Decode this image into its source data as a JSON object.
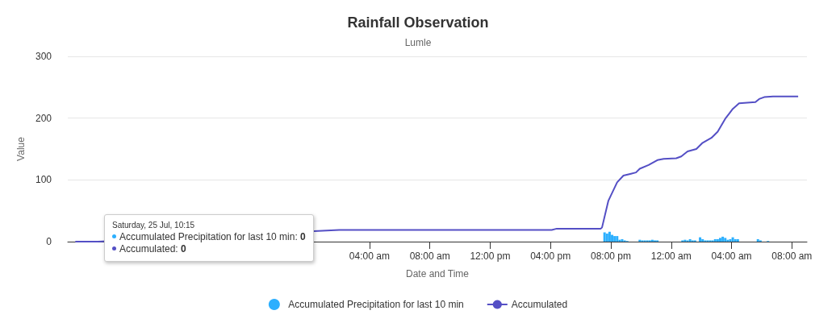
{
  "chart_data": {
    "type": "line",
    "title": "Rainfall Observation",
    "subtitle": "Lumle",
    "xlabel": "Date and Time",
    "ylabel": "Value",
    "xlim": [
      "--07-25T08:00",
      "--07-27T09:00"
    ],
    "ylim": [
      0,
      300
    ],
    "yticks": [
      0,
      100,
      200,
      300
    ],
    "xticks": [
      {
        "value": "--07-26T04:00",
        "label": "04:00 am"
      },
      {
        "value": "--07-26T08:00",
        "label": "08:00 am"
      },
      {
        "value": "--07-26T12:00",
        "label": "12:00 pm"
      },
      {
        "value": "--07-26T16:00",
        "label": "04:00 pm"
      },
      {
        "value": "--07-26T20:00",
        "label": "08:00 pm"
      },
      {
        "value": "--07-27T00:00",
        "label": "12:00 am"
      },
      {
        "value": "--07-27T04:00",
        "label": "04:00 am"
      },
      {
        "value": "--07-27T08:00",
        "label": "08:00 am"
      }
    ],
    "grid": "y",
    "legend": "bottom",
    "annotations": [
      "Saturday, 25 Jul, 10:15",
      "Accumulated Precipitation for last 10 min: 0",
      "Accumulated: 0"
    ],
    "series": [
      {
        "name": "Accumulated Precipitation for last 10 min",
        "type": "bar",
        "color": "#2caffe",
        "x": [
          "--07-26T19:35",
          "--07-26T19:45",
          "--07-26T19:55",
          "--07-26T20:05",
          "--07-26T20:15",
          "--07-26T20:25",
          "--07-26T20:35",
          "--07-26T20:45",
          "--07-26T20:55",
          "--07-26T21:05",
          "--07-26T21:55",
          "--07-26T22:05",
          "--07-26T22:15",
          "--07-26T22:25",
          "--07-26T22:35",
          "--07-26T22:45",
          "--07-26T22:55",
          "--07-26T23:05",
          "--07-27T00:45",
          "--07-27T00:55",
          "--07-27T01:05",
          "--07-27T01:15",
          "--07-27T01:25",
          "--07-27T01:35",
          "--07-27T01:55",
          "--07-27T02:05",
          "--07-27T02:15",
          "--07-27T02:25",
          "--07-27T02:35",
          "--07-27T02:45",
          "--07-27T02:55",
          "--07-27T03:05",
          "--07-27T03:15",
          "--07-27T03:25",
          "--07-27T03:35",
          "--07-27T03:45",
          "--07-27T03:55",
          "--07-27T04:05",
          "--07-27T04:15",
          "--07-27T04:25",
          "--07-27T05:45",
          "--07-27T05:55",
          "--07-27T06:25"
        ],
        "values": [
          15,
          13,
          16,
          11,
          9,
          9,
          3,
          4,
          2,
          1,
          3,
          2,
          2,
          2,
          2,
          3,
          2,
          2,
          2,
          3,
          2,
          4,
          2,
          2,
          7,
          4,
          2,
          2,
          2,
          2,
          4,
          4,
          6,
          8,
          6,
          3,
          4,
          7,
          4,
          4,
          4,
          2,
          1
        ]
      },
      {
        "name": "Accumulated",
        "color": "#544fc5",
        "x": [
          "--07-25T08:30",
          "--07-25T10:00",
          "--07-26T02:00",
          "--07-26T16:05",
          "--07-26T16:25",
          "--07-26T19:20",
          "--07-26T19:25",
          "--07-26T19:50",
          "--07-26T20:25",
          "--07-26T20:50",
          "--07-26T21:20",
          "--07-26T21:40",
          "--07-26T21:55",
          "--07-26T22:30",
          "--07-26T23:05",
          "--07-26T23:30",
          "--07-27T00:20",
          "--07-27T00:40",
          "--07-27T01:05",
          "--07-27T01:40",
          "--07-27T02:05",
          "--07-27T02:40",
          "--07-27T03:05",
          "--07-27T03:35",
          "--07-27T03:50",
          "--07-27T04:05",
          "--07-27T04:30",
          "--07-27T05:35",
          "--07-27T05:50",
          "--07-27T06:10",
          "--07-27T06:45",
          "--07-27T08:25"
        ],
        "values": [
          0,
          0,
          19,
          19,
          21,
          21,
          23,
          66,
          96,
          107,
          110,
          112,
          118,
          124,
          132,
          134,
          135,
          138,
          146,
          150,
          160,
          168,
          178,
          199,
          207,
          215,
          224,
          226,
          231,
          234,
          235,
          235
        ]
      }
    ]
  }
}
